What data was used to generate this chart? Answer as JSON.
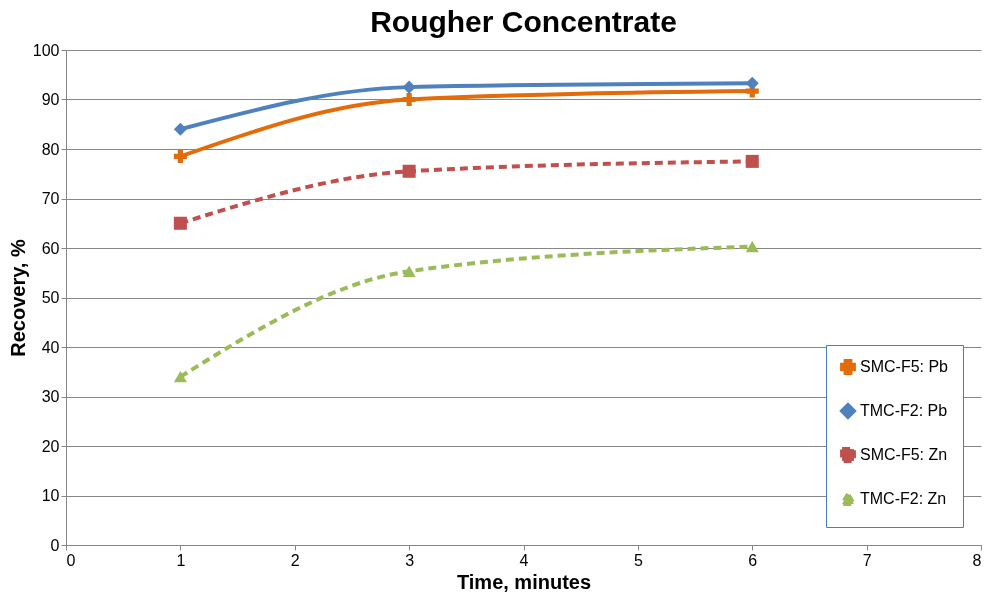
{
  "chart_data": {
    "type": "line",
    "title": "Rougher Concentrate",
    "xlabel": "Time, minutes",
    "ylabel": "Recovery, %",
    "x": [
      1,
      3,
      6
    ],
    "series": [
      {
        "name": "SMC-F5: Pb",
        "color": "#e36c0a",
        "values": [
          78.5,
          90,
          91.7
        ],
        "marker": "cross",
        "line_style": "solid"
      },
      {
        "name": "TMC-F2: Pb",
        "color": "#4f81bd",
        "values": [
          84,
          92.5,
          93.3
        ],
        "marker": "diamond",
        "line_style": "solid"
      },
      {
        "name": "SMC-F5: Zn",
        "color": "#c0504d",
        "values": [
          65,
          75.5,
          77.5
        ],
        "marker": "square",
        "line_style": "dashed"
      },
      {
        "name": "TMC-F2: Zn",
        "color": "#9bbb59",
        "values": [
          34,
          55.3,
          60.3
        ],
        "marker": "triangle",
        "line_style": "dashed"
      }
    ],
    "xlim": [
      0,
      8
    ],
    "xticks": [
      0,
      1,
      2,
      3,
      4,
      5,
      6,
      7,
      8
    ],
    "ylim": [
      0,
      100
    ],
    "yticks": [
      0,
      10,
      20,
      30,
      40,
      50,
      60,
      70,
      80,
      90,
      100
    ],
    "grid": "y",
    "legend": "bottom right"
  }
}
